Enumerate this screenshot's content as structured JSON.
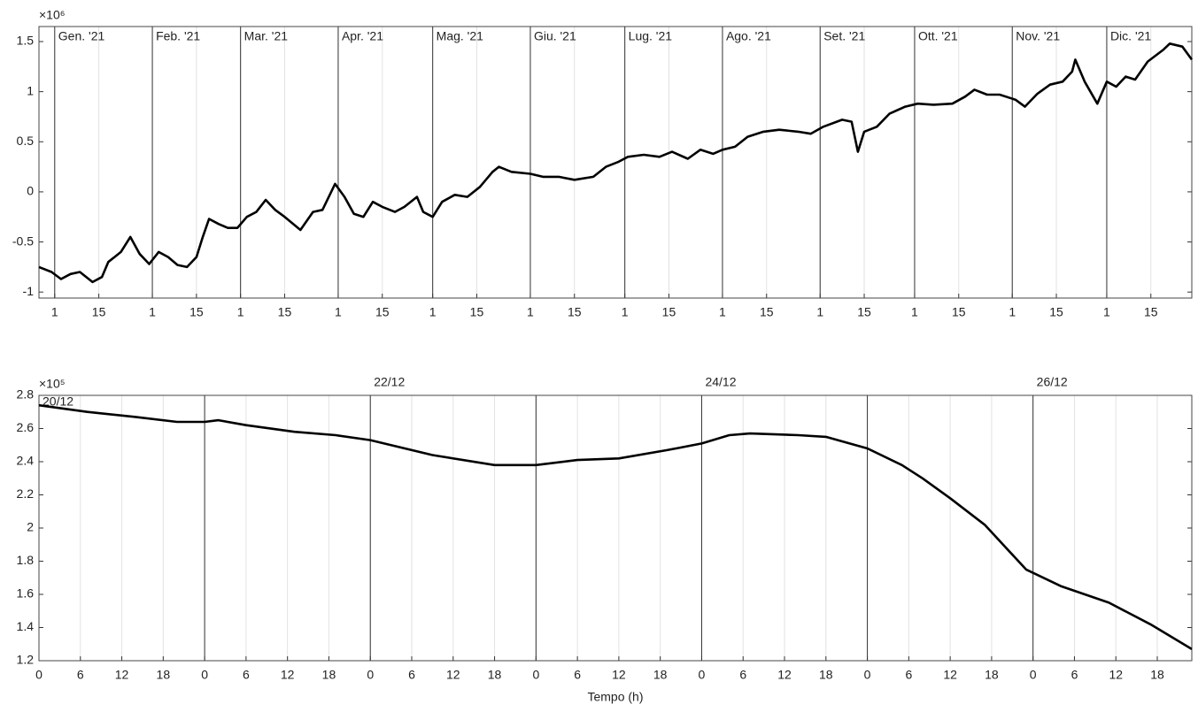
{
  "chart_data": [
    {
      "type": "line",
      "y_multiplier": "×10⁶",
      "xlim": [
        -4,
        362
      ],
      "ylim": [
        -1.06,
        1.65
      ],
      "yticks": [
        -1,
        -0.5,
        0,
        0.5,
        1,
        1.5
      ],
      "xticks": [
        1,
        15,
        {
          "value": 32,
          "label": "1"
        },
        {
          "value": 46,
          "label": "15"
        },
        {
          "value": 60,
          "label": "1"
        },
        {
          "value": 74,
          "label": "15"
        },
        {
          "value": 91,
          "label": "1"
        },
        {
          "value": 105,
          "label": "15"
        },
        {
          "value": 121,
          "label": "1"
        },
        {
          "value": 135,
          "label": "15"
        },
        {
          "value": 152,
          "label": "1"
        },
        {
          "value": 166,
          "label": "15"
        },
        {
          "value": 182,
          "label": "1"
        },
        {
          "value": 196,
          "label": "15"
        },
        {
          "value": 213,
          "label": "1"
        },
        {
          "value": 227,
          "label": "15"
        },
        {
          "value": 244,
          "label": "1"
        },
        {
          "value": 258,
          "label": "15"
        },
        {
          "value": 274,
          "label": "1"
        },
        {
          "value": 288,
          "label": "15"
        },
        {
          "value": 305,
          "label": "1"
        },
        {
          "value": 319,
          "label": "15"
        },
        {
          "value": 335,
          "label": "1"
        },
        {
          "value": 349,
          "label": "15"
        }
      ],
      "x_markers": [
        1,
        32,
        60,
        91,
        121,
        152,
        182,
        213,
        244,
        274,
        305,
        335
      ],
      "x_marker_labels": [
        "Gen. '21",
        "Feb. '21",
        "Mar. '21",
        "Apr. '21",
        "Mag. '21",
        "Giu. '21",
        "Lug. '21",
        "Ago. '21",
        "Set. '21",
        "Ott. '21",
        "Nov. '21",
        "Dic. '21"
      ],
      "grid": true,
      "color": "#000000",
      "x": [
        -4,
        0,
        3,
        6,
        9,
        13,
        16,
        18,
        20,
        22,
        25,
        28,
        31,
        34,
        37,
        40,
        43,
        46,
        48,
        50,
        53,
        56,
        59,
        62,
        65,
        68,
        71,
        74,
        79,
        83,
        86,
        90,
        93,
        96,
        99,
        102,
        105,
        109,
        112,
        116,
        118,
        121,
        124,
        128,
        132,
        136,
        140,
        142,
        146,
        152,
        156,
        161,
        166,
        172,
        176,
        180,
        183,
        188,
        193,
        197,
        202,
        206,
        210,
        213,
        217,
        221,
        226,
        231,
        237,
        241,
        245,
        251,
        254,
        256,
        258,
        262,
        266,
        271,
        275,
        280,
        286,
        290,
        293,
        297,
        301,
        306,
        309,
        313,
        317,
        321,
        324,
        325,
        328,
        332,
        335,
        338,
        341,
        344,
        348,
        353,
        355,
        359,
        362
      ],
      "values": [
        -0.75,
        -0.8,
        -0.87,
        -0.82,
        -0.8,
        -0.9,
        -0.85,
        -0.7,
        -0.65,
        -0.6,
        -0.45,
        -0.62,
        -0.72,
        -0.6,
        -0.65,
        -0.73,
        -0.75,
        -0.65,
        -0.45,
        -0.27,
        -0.32,
        -0.36,
        -0.36,
        -0.25,
        -0.2,
        -0.08,
        -0.18,
        -0.25,
        -0.38,
        -0.2,
        -0.18,
        0.08,
        -0.05,
        -0.22,
        -0.25,
        -0.1,
        -0.15,
        -0.2,
        -0.15,
        -0.05,
        -0.2,
        -0.25,
        -0.1,
        -0.03,
        -0.05,
        0.05,
        0.2,
        0.25,
        0.2,
        0.18,
        0.15,
        0.15,
        0.12,
        0.15,
        0.25,
        0.3,
        0.35,
        0.37,
        0.35,
        0.4,
        0.33,
        0.42,
        0.38,
        0.42,
        0.45,
        0.55,
        0.6,
        0.62,
        0.6,
        0.58,
        0.65,
        0.72,
        0.7,
        0.4,
        0.6,
        0.65,
        0.78,
        0.85,
        0.88,
        0.87,
        0.88,
        0.95,
        1.02,
        0.97,
        0.97,
        0.92,
        0.85,
        0.98,
        1.07,
        1.1,
        1.2,
        1.32,
        1.1,
        0.88,
        1.1,
        1.05,
        1.15,
        1.12,
        1.3,
        1.42,
        1.48,
        1.45,
        1.32
      ]
    },
    {
      "type": "line",
      "y_multiplier": "×10⁵",
      "xlabel": "Tempo (h)",
      "xlim": [
        0,
        167
      ],
      "ylim": [
        1.2,
        2.8
      ],
      "yticks": [
        1.2,
        1.4,
        1.6,
        1.8,
        2,
        2.2,
        2.4,
        2.6,
        2.8
      ],
      "xticks": [
        0,
        6,
        12,
        18,
        {
          "value": 24,
          "label": "0"
        },
        {
          "value": 30,
          "label": "6"
        },
        {
          "value": 36,
          "label": "12"
        },
        {
          "value": 42,
          "label": "18"
        },
        {
          "value": 48,
          "label": "0"
        },
        {
          "value": 54,
          "label": "6"
        },
        {
          "value": 60,
          "label": "12"
        },
        {
          "value": 66,
          "label": "18"
        },
        {
          "value": 72,
          "label": "0"
        },
        {
          "value": 78,
          "label": "6"
        },
        {
          "value": 84,
          "label": "12"
        },
        {
          "value": 90,
          "label": "18"
        },
        {
          "value": 96,
          "label": "0"
        },
        {
          "value": 102,
          "label": "6"
        },
        {
          "value": 108,
          "label": "12"
        },
        {
          "value": 114,
          "label": "18"
        },
        {
          "value": 120,
          "label": "0"
        },
        {
          "value": 126,
          "label": "6"
        },
        {
          "value": 132,
          "label": "12"
        },
        {
          "value": 138,
          "label": "18"
        },
        {
          "value": 144,
          "label": "0"
        },
        {
          "value": 150,
          "label": "6"
        },
        {
          "value": 156,
          "label": "12"
        },
        {
          "value": 162,
          "label": "18"
        }
      ],
      "x_markers": [
        0,
        24,
        48,
        72,
        96,
        120,
        144
      ],
      "x_marker_labels": [
        "20/12",
        null,
        "22/12",
        null,
        "24/12",
        null,
        "26/12"
      ],
      "grid": true,
      "color": "#000000",
      "x": [
        0,
        7,
        14,
        20,
        24,
        26,
        30,
        37,
        43,
        48,
        57,
        66,
        72,
        78,
        84,
        91,
        96,
        100,
        103,
        110,
        114,
        120,
        125,
        128,
        132,
        137,
        143,
        148,
        155,
        161,
        167
      ],
      "values": [
        2.74,
        2.7,
        2.67,
        2.64,
        2.64,
        2.65,
        2.62,
        2.58,
        2.56,
        2.53,
        2.44,
        2.38,
        2.38,
        2.41,
        2.42,
        2.47,
        2.51,
        2.56,
        2.57,
        2.56,
        2.55,
        2.48,
        2.38,
        2.3,
        2.18,
        2.02,
        1.75,
        1.65,
        1.55,
        1.42,
        1.27
      ]
    }
  ]
}
